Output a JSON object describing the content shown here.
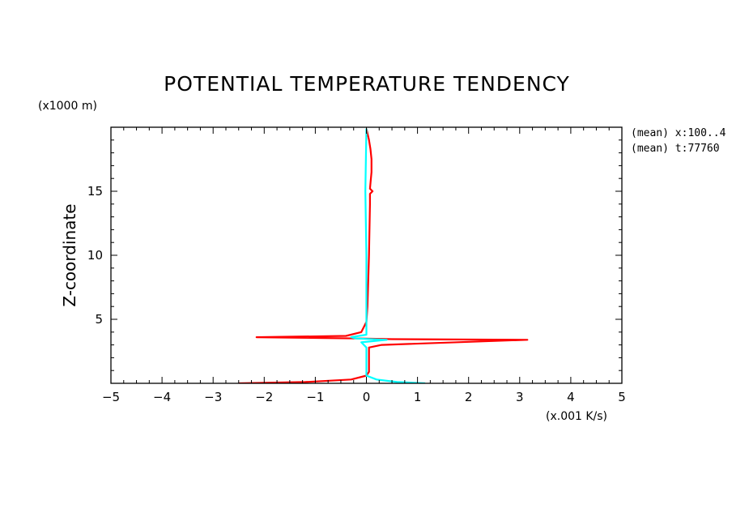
{
  "chart_data": {
    "type": "line",
    "title": "POTENTIAL TEMPERATURE TENDENCY",
    "xlabel": "(x.001 K/s)",
    "ylabel": "Z-coordinate",
    "y_unit_label": "(x1000 m)",
    "xlim": [
      -5,
      5
    ],
    "ylim": [
      0,
      20
    ],
    "x_ticks": [
      -5,
      -4,
      -3,
      -2,
      -1,
      0,
      1,
      2,
      3,
      4,
      5
    ],
    "y_ticks": [
      5,
      10,
      15
    ],
    "info_lines": [
      "(mean) x:100..4",
      "(mean) t:77760"
    ],
    "grid": false,
    "series": [
      {
        "color": "#ff0000",
        "points": [
          [
            -2.5,
            0.0
          ],
          [
            -1.2,
            0.1
          ],
          [
            -0.3,
            0.3
          ],
          [
            0.0,
            0.6
          ],
          [
            0.05,
            0.9
          ],
          [
            0.05,
            2.8
          ],
          [
            0.3,
            3.0
          ],
          [
            3.15,
            3.4
          ],
          [
            0.5,
            3.45
          ],
          [
            -0.1,
            3.5
          ],
          [
            -2.15,
            3.6
          ],
          [
            -0.4,
            3.7
          ],
          [
            -0.1,
            4.0
          ],
          [
            0.0,
            4.8
          ],
          [
            0.02,
            6.0
          ],
          [
            0.05,
            10.0
          ],
          [
            0.07,
            14.0
          ],
          [
            0.07,
            14.8
          ],
          [
            0.12,
            15.0
          ],
          [
            0.07,
            15.2
          ],
          [
            0.1,
            16.5
          ],
          [
            0.1,
            17.5
          ],
          [
            0.08,
            18.3
          ],
          [
            0.05,
            19.0
          ],
          [
            0.0,
            19.9
          ]
        ]
      },
      {
        "color": "#00ffff",
        "points": [
          [
            1.15,
            0.0
          ],
          [
            0.6,
            0.1
          ],
          [
            0.2,
            0.3
          ],
          [
            0.0,
            0.6
          ],
          [
            0.0,
            2.8
          ],
          [
            -0.1,
            3.2
          ],
          [
            0.4,
            3.4
          ],
          [
            -0.2,
            3.5
          ],
          [
            -0.3,
            3.6
          ],
          [
            0.0,
            3.8
          ],
          [
            0.0,
            5.0
          ],
          [
            0.0,
            10.0
          ],
          [
            -0.02,
            15.0
          ],
          [
            0.0,
            19.9
          ]
        ]
      }
    ]
  }
}
